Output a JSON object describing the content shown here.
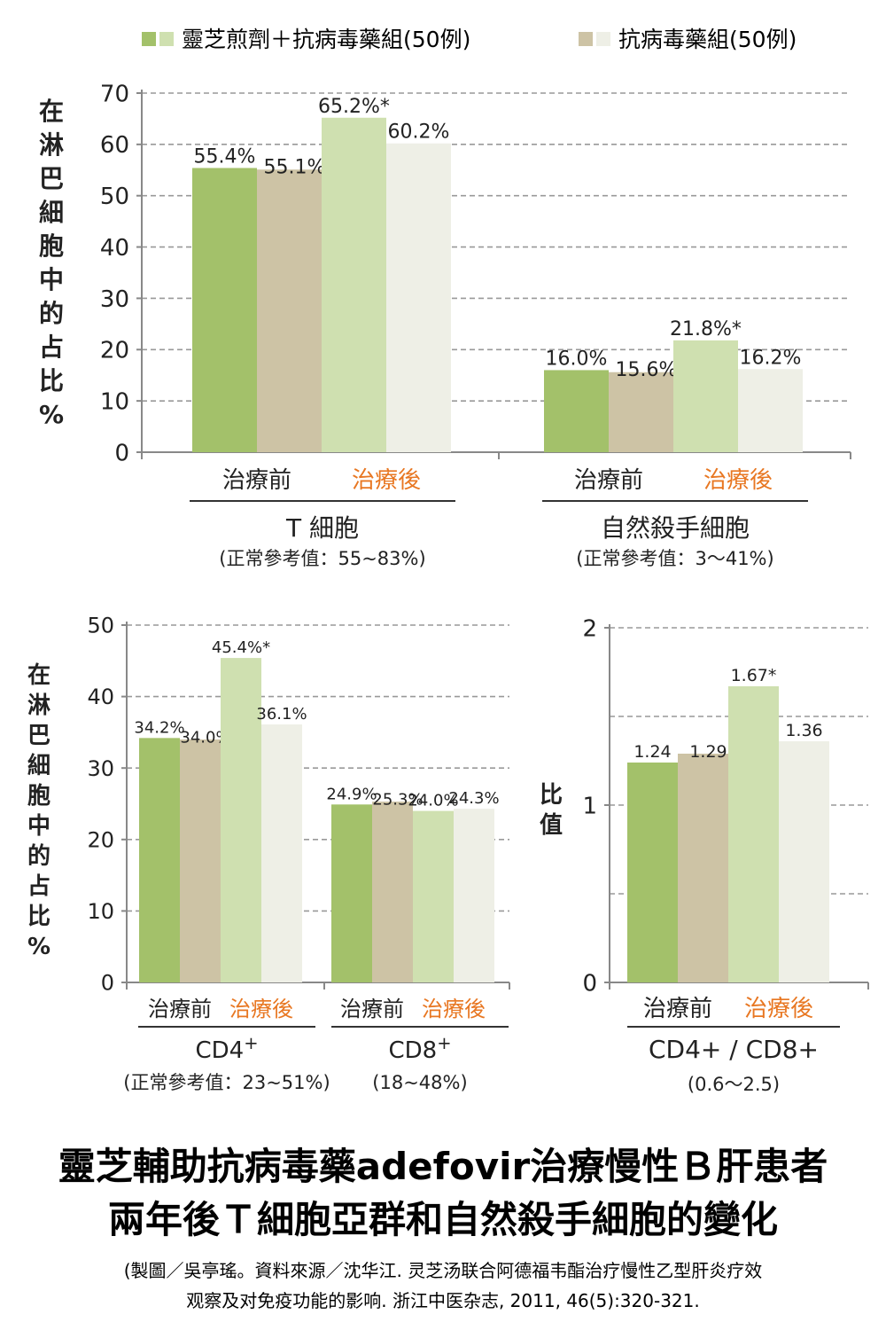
{
  "legend": {
    "items": [
      {
        "label": "靈芝煎劑＋抗病毒藥組(50例)",
        "color_before": "#a3c16a",
        "color_after": "#cfe0b0"
      },
      {
        "label": "抗病毒藥組(50例)",
        "color_before": "#cdc3a5",
        "color_after": "#eeefe6"
      }
    ]
  },
  "period_labels": {
    "before": "治療前",
    "after": "治療後",
    "after_color": "#e87722"
  },
  "chart_data": [
    {
      "id": "top",
      "type": "bar",
      "ylabel": "在淋巴細胞中的占比%",
      "ylim": [
        0,
        70
      ],
      "yticks": [
        0,
        10,
        20,
        30,
        40,
        50,
        60,
        70
      ],
      "groups": [
        {
          "name": "T 細胞",
          "reference": "(正常參考值：55~83%)",
          "values": [
            55.4,
            55.1,
            65.2,
            60.2
          ],
          "labels": [
            "55.4%",
            "55.1%",
            "65.2%*",
            "60.2%"
          ]
        },
        {
          "name": "自然殺手細胞",
          "reference": "(正常參考值：3～41%)",
          "values": [
            16.0,
            15.6,
            21.8,
            16.2
          ],
          "labels": [
            "16.0%",
            "15.6%",
            "21.8%*",
            "16.2%"
          ]
        }
      ]
    },
    {
      "id": "bottom-left",
      "type": "bar",
      "ylabel": "在淋巴細胞中的占比%",
      "ylim": [
        0,
        50
      ],
      "yticks": [
        0,
        10,
        20,
        30,
        40,
        50
      ],
      "groups": [
        {
          "name": "CD4",
          "sup": "+",
          "reference": "(正常參考值：23~51%)",
          "values": [
            34.2,
            34.0,
            45.4,
            36.1
          ],
          "labels": [
            "34.2%",
            "34.0%",
            "45.4%*",
            "36.1%"
          ]
        },
        {
          "name": "CD8",
          "sup": "+",
          "reference": "(18~48%)",
          "values": [
            24.9,
            25.3,
            24.0,
            24.3
          ],
          "labels": [
            "24.9%",
            "25.3%",
            "24.0%",
            "24.3%"
          ]
        }
      ]
    },
    {
      "id": "bottom-right",
      "type": "bar",
      "ylabel": "比值",
      "ylim": [
        0,
        2
      ],
      "yticks": [
        0,
        1,
        2
      ],
      "groups": [
        {
          "name": "CD4+ / CD8+",
          "reference": "(0.6～2.5)",
          "values": [
            1.24,
            1.29,
            1.67,
            1.36
          ],
          "labels": [
            "1.24",
            "1.29",
            "1.67*",
            "1.36"
          ]
        }
      ]
    }
  ],
  "title": {
    "line1": "靈芝輔助抗病毒藥adefovir治療慢性Ｂ肝患者",
    "line2": "兩年後Ｔ細胞亞群和自然殺手細胞的變化"
  },
  "source": {
    "line1": "(製圖／吳亭瑤。資料來源／沈华江. 灵芝汤联合阿德福韦酯治疗慢性乙型肝炎疗效",
    "line2": "观察及对免疫功能的影响. 浙江中医杂志, 2011, 46(5):320-321."
  }
}
